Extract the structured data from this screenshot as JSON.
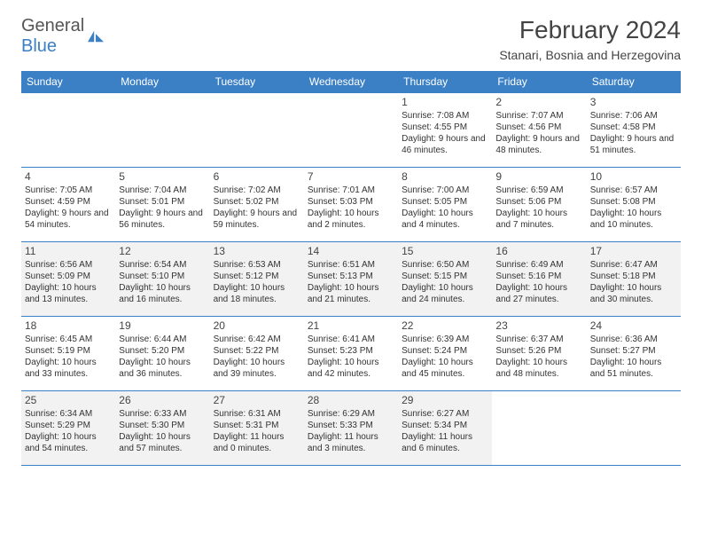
{
  "brand": {
    "word1": "General",
    "word2": "Blue",
    "logo_fill": "#3b7fc4"
  },
  "title": "February 2024",
  "location": "Stanari, Bosnia and Herzegovina",
  "colors": {
    "header_bg": "#3b7fc4",
    "header_text": "#ffffff",
    "border": "#3b7fc4",
    "shade_bg": "#f2f2f2",
    "body_text": "#333333"
  },
  "typography": {
    "title_fontsize": 28,
    "location_fontsize": 14,
    "weekday_fontsize": 12,
    "daynum_fontsize": 12,
    "cell_fontsize": 10
  },
  "weekdays": [
    "Sunday",
    "Monday",
    "Tuesday",
    "Wednesday",
    "Thursday",
    "Friday",
    "Saturday"
  ],
  "weeks": [
    [
      {
        "day": "",
        "sunrise": "",
        "sunset": "",
        "daylight": "",
        "shaded": false
      },
      {
        "day": "",
        "sunrise": "",
        "sunset": "",
        "daylight": "",
        "shaded": false
      },
      {
        "day": "",
        "sunrise": "",
        "sunset": "",
        "daylight": "",
        "shaded": false
      },
      {
        "day": "",
        "sunrise": "",
        "sunset": "",
        "daylight": "",
        "shaded": false
      },
      {
        "day": "1",
        "sunrise": "Sunrise: 7:08 AM",
        "sunset": "Sunset: 4:55 PM",
        "daylight": "Daylight: 9 hours and 46 minutes.",
        "shaded": false
      },
      {
        "day": "2",
        "sunrise": "Sunrise: 7:07 AM",
        "sunset": "Sunset: 4:56 PM",
        "daylight": "Daylight: 9 hours and 48 minutes.",
        "shaded": false
      },
      {
        "day": "3",
        "sunrise": "Sunrise: 7:06 AM",
        "sunset": "Sunset: 4:58 PM",
        "daylight": "Daylight: 9 hours and 51 minutes.",
        "shaded": false
      }
    ],
    [
      {
        "day": "4",
        "sunrise": "Sunrise: 7:05 AM",
        "sunset": "Sunset: 4:59 PM",
        "daylight": "Daylight: 9 hours and 54 minutes.",
        "shaded": false
      },
      {
        "day": "5",
        "sunrise": "Sunrise: 7:04 AM",
        "sunset": "Sunset: 5:01 PM",
        "daylight": "Daylight: 9 hours and 56 minutes.",
        "shaded": false
      },
      {
        "day": "6",
        "sunrise": "Sunrise: 7:02 AM",
        "sunset": "Sunset: 5:02 PM",
        "daylight": "Daylight: 9 hours and 59 minutes.",
        "shaded": false
      },
      {
        "day": "7",
        "sunrise": "Sunrise: 7:01 AM",
        "sunset": "Sunset: 5:03 PM",
        "daylight": "Daylight: 10 hours and 2 minutes.",
        "shaded": false
      },
      {
        "day": "8",
        "sunrise": "Sunrise: 7:00 AM",
        "sunset": "Sunset: 5:05 PM",
        "daylight": "Daylight: 10 hours and 4 minutes.",
        "shaded": false
      },
      {
        "day": "9",
        "sunrise": "Sunrise: 6:59 AM",
        "sunset": "Sunset: 5:06 PM",
        "daylight": "Daylight: 10 hours and 7 minutes.",
        "shaded": false
      },
      {
        "day": "10",
        "sunrise": "Sunrise: 6:57 AM",
        "sunset": "Sunset: 5:08 PM",
        "daylight": "Daylight: 10 hours and 10 minutes.",
        "shaded": false
      }
    ],
    [
      {
        "day": "11",
        "sunrise": "Sunrise: 6:56 AM",
        "sunset": "Sunset: 5:09 PM",
        "daylight": "Daylight: 10 hours and 13 minutes.",
        "shaded": true
      },
      {
        "day": "12",
        "sunrise": "Sunrise: 6:54 AM",
        "sunset": "Sunset: 5:10 PM",
        "daylight": "Daylight: 10 hours and 16 minutes.",
        "shaded": true
      },
      {
        "day": "13",
        "sunrise": "Sunrise: 6:53 AM",
        "sunset": "Sunset: 5:12 PM",
        "daylight": "Daylight: 10 hours and 18 minutes.",
        "shaded": true
      },
      {
        "day": "14",
        "sunrise": "Sunrise: 6:51 AM",
        "sunset": "Sunset: 5:13 PM",
        "daylight": "Daylight: 10 hours and 21 minutes.",
        "shaded": true
      },
      {
        "day": "15",
        "sunrise": "Sunrise: 6:50 AM",
        "sunset": "Sunset: 5:15 PM",
        "daylight": "Daylight: 10 hours and 24 minutes.",
        "shaded": true
      },
      {
        "day": "16",
        "sunrise": "Sunrise: 6:49 AM",
        "sunset": "Sunset: 5:16 PM",
        "daylight": "Daylight: 10 hours and 27 minutes.",
        "shaded": true
      },
      {
        "day": "17",
        "sunrise": "Sunrise: 6:47 AM",
        "sunset": "Sunset: 5:18 PM",
        "daylight": "Daylight: 10 hours and 30 minutes.",
        "shaded": true
      }
    ],
    [
      {
        "day": "18",
        "sunrise": "Sunrise: 6:45 AM",
        "sunset": "Sunset: 5:19 PM",
        "daylight": "Daylight: 10 hours and 33 minutes.",
        "shaded": false
      },
      {
        "day": "19",
        "sunrise": "Sunrise: 6:44 AM",
        "sunset": "Sunset: 5:20 PM",
        "daylight": "Daylight: 10 hours and 36 minutes.",
        "shaded": false
      },
      {
        "day": "20",
        "sunrise": "Sunrise: 6:42 AM",
        "sunset": "Sunset: 5:22 PM",
        "daylight": "Daylight: 10 hours and 39 minutes.",
        "shaded": false
      },
      {
        "day": "21",
        "sunrise": "Sunrise: 6:41 AM",
        "sunset": "Sunset: 5:23 PM",
        "daylight": "Daylight: 10 hours and 42 minutes.",
        "shaded": false
      },
      {
        "day": "22",
        "sunrise": "Sunrise: 6:39 AM",
        "sunset": "Sunset: 5:24 PM",
        "daylight": "Daylight: 10 hours and 45 minutes.",
        "shaded": false
      },
      {
        "day": "23",
        "sunrise": "Sunrise: 6:37 AM",
        "sunset": "Sunset: 5:26 PM",
        "daylight": "Daylight: 10 hours and 48 minutes.",
        "shaded": false
      },
      {
        "day": "24",
        "sunrise": "Sunrise: 6:36 AM",
        "sunset": "Sunset: 5:27 PM",
        "daylight": "Daylight: 10 hours and 51 minutes.",
        "shaded": false
      }
    ],
    [
      {
        "day": "25",
        "sunrise": "Sunrise: 6:34 AM",
        "sunset": "Sunset: 5:29 PM",
        "daylight": "Daylight: 10 hours and 54 minutes.",
        "shaded": true
      },
      {
        "day": "26",
        "sunrise": "Sunrise: 6:33 AM",
        "sunset": "Sunset: 5:30 PM",
        "daylight": "Daylight: 10 hours and 57 minutes.",
        "shaded": true
      },
      {
        "day": "27",
        "sunrise": "Sunrise: 6:31 AM",
        "sunset": "Sunset: 5:31 PM",
        "daylight": "Daylight: 11 hours and 0 minutes.",
        "shaded": true
      },
      {
        "day": "28",
        "sunrise": "Sunrise: 6:29 AM",
        "sunset": "Sunset: 5:33 PM",
        "daylight": "Daylight: 11 hours and 3 minutes.",
        "shaded": true
      },
      {
        "day": "29",
        "sunrise": "Sunrise: 6:27 AM",
        "sunset": "Sunset: 5:34 PM",
        "daylight": "Daylight: 11 hours and 6 minutes.",
        "shaded": true
      },
      {
        "day": "",
        "sunrise": "",
        "sunset": "",
        "daylight": "",
        "shaded": false
      },
      {
        "day": "",
        "sunrise": "",
        "sunset": "",
        "daylight": "",
        "shaded": false
      }
    ]
  ]
}
